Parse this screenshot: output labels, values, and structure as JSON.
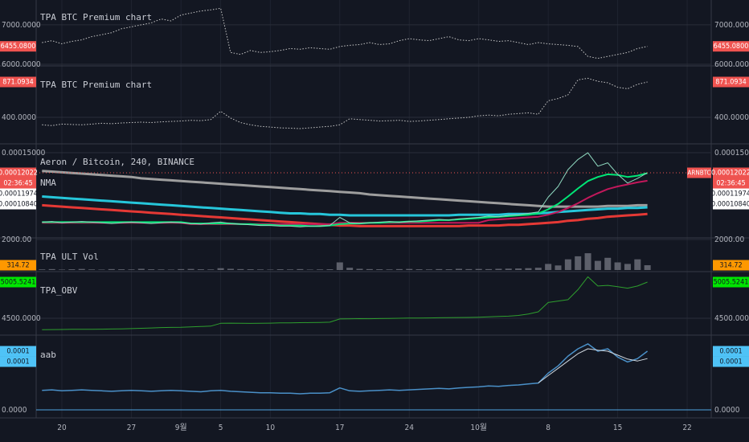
{
  "x_categories": [
    null,
    null,
    "20",
    null,
    null,
    null,
    null,
    null,
    null,
    "27",
    null,
    null,
    null,
    null,
    "9월",
    null,
    null,
    null,
    "5",
    null,
    null,
    null,
    null,
    "10",
    null,
    null,
    null,
    null,
    null,
    null,
    "17",
    null,
    null,
    null,
    null,
    null,
    null,
    "24",
    null,
    null,
    null,
    null,
    null,
    null,
    "10월",
    null,
    null,
    null,
    null,
    null,
    null,
    "8",
    null,
    null,
    null,
    null,
    null,
    null,
    "15",
    null,
    null,
    null,
    null,
    null,
    null,
    "22"
  ],
  "chart_data": [
    {
      "type": "line",
      "title": "TPA BTC Premium chart",
      "ylim": [
        6000,
        7630
      ],
      "yticks": [
        {
          "value": 6000,
          "label": "6000.0000"
        },
        {
          "value": 7000,
          "label": "7000.0000"
        }
      ],
      "series": [
        {
          "color": "#c8c8c8",
          "dashed": true,
          "label_color": "#ef5350",
          "last_label": "6455.0800",
          "values": [
            6550,
            6600,
            6520,
            6580,
            6620,
            6700,
            6750,
            6800,
            6900,
            6950,
            7000,
            7050,
            7150,
            7100,
            7250,
            7300,
            7350,
            7380,
            7420,
            6300,
            6250,
            6350,
            6300,
            6320,
            6350,
            6400,
            6380,
            6420,
            6400,
            6380,
            6450,
            6480,
            6500,
            6550,
            6500,
            6520,
            6600,
            6650,
            6620,
            6600,
            6650,
            6700,
            6620,
            6600,
            6650,
            6620,
            6580,
            6600,
            6550,
            6500,
            6550,
            6520,
            6500,
            6480,
            6450,
            6200,
            6150,
            6200,
            6250,
            6300,
            6400,
            6455.08,
            null,
            null,
            null,
            null
          ]
        }
      ]
    },
    {
      "type": "line",
      "title": "TPA BTC Premium chart",
      "ylim": [
        57,
        1064
      ],
      "yticks": [
        {
          "value": 400,
          "label": "400.0000"
        }
      ],
      "series": [
        {
          "color": "#c8c8c8",
          "dashed": true,
          "label_color": "#ef5350",
          "last_label": "871.0934",
          "values": [
            300,
            290,
            310,
            305,
            300,
            310,
            320,
            315,
            325,
            330,
            335,
            330,
            340,
            345,
            350,
            360,
            355,
            370,
            480,
            390,
            330,
            300,
            280,
            270,
            260,
            255,
            250,
            260,
            270,
            280,
            300,
            380,
            370,
            360,
            350,
            355,
            360,
            345,
            350,
            360,
            370,
            380,
            390,
            400,
            420,
            430,
            420,
            440,
            450,
            460,
            440,
            620,
            650,
            700,
            900,
            920,
            880,
            860,
            800,
            780,
            840,
            871.0934,
            null,
            null,
            null,
            null
          ]
        }
      ]
    },
    {
      "type": "line",
      "title": "Aeron / Bitcoin, 240, BINANCE",
      "subtitle": "NMA",
      "symbol": "ARNBTC",
      "countdown": "02:36:45",
      "ylim": [
        2.6e-05,
        0.000162
      ],
      "yticks": [
        {
          "value": 0.00015,
          "label": "0.00015000"
        }
      ],
      "series": [
        {
          "color": "#9e9e9e",
          "width": 3,
          "values": [
            0.000123,
            0.000122,
            0.000121,
            0.00012,
            0.000119,
            0.000118,
            0.000117,
            0.000116,
            0.000115,
            0.000114,
            0.000112,
            0.000111,
            0.00011,
            0.000109,
            0.000108,
            0.000107,
            0.000106,
            0.000105,
            0.000104,
            0.000103,
            0.000102,
            0.000101,
            0.0001,
            9.9e-05,
            9.8e-05,
            9.7e-05,
            9.6e-05,
            9.5e-05,
            9.4e-05,
            9.3e-05,
            9.2e-05,
            9.1e-05,
            9e-05,
            8.8e-05,
            8.7e-05,
            8.6e-05,
            8.5e-05,
            8.4e-05,
            8.3e-05,
            8.2e-05,
            8.1e-05,
            8e-05,
            7.9e-05,
            7.8e-05,
            7.7e-05,
            7.6e-05,
            7.5e-05,
            7.4e-05,
            7.3e-05,
            7.2e-05,
            7.1e-05,
            7e-05,
            7e-05,
            7e-05,
            7e-05,
            7e-05,
            7e-05,
            7.1e-05,
            7.1e-05,
            7.1e-05,
            7.2e-05,
            7.2e-05,
            null,
            null,
            null,
            null
          ]
        },
        {
          "color": "#26c6da",
          "width": 3,
          "values": [
            8.5e-05,
            8.4e-05,
            8.3e-05,
            8.2e-05,
            8.1e-05,
            8e-05,
            7.9e-05,
            7.8e-05,
            7.7e-05,
            7.6e-05,
            7.5e-05,
            7.4e-05,
            7.3e-05,
            7.2e-05,
            7.1e-05,
            7e-05,
            6.9e-05,
            6.8e-05,
            6.7e-05,
            6.6e-05,
            6.5e-05,
            6.4e-05,
            6.3e-05,
            6.2e-05,
            6.1e-05,
            6e-05,
            6e-05,
            5.9e-05,
            5.9e-05,
            5.8e-05,
            5.8e-05,
            5.7e-05,
            5.7e-05,
            5.7e-05,
            5.7e-05,
            5.7e-05,
            5.7e-05,
            5.7e-05,
            5.7e-05,
            5.7e-05,
            5.7e-05,
            5.7e-05,
            5.8e-05,
            5.8e-05,
            5.8e-05,
            5.8e-05,
            5.8e-05,
            5.9e-05,
            5.9e-05,
            5.9e-05,
            6e-05,
            6.1e-05,
            6.2e-05,
            6.3e-05,
            6.4e-05,
            6.5e-05,
            6.6e-05,
            6.7e-05,
            6.7e-05,
            6.8e-05,
            6.8e-05,
            6.9e-05,
            null,
            null,
            null,
            null
          ]
        },
        {
          "color": "#e53935",
          "width": 3,
          "values": [
            7.2e-05,
            7.1e-05,
            7e-05,
            6.9e-05,
            6.8e-05,
            6.7e-05,
            6.6e-05,
            6.5e-05,
            6.4e-05,
            6.3e-05,
            6.2e-05,
            6.1e-05,
            6e-05,
            5.9e-05,
            5.8e-05,
            5.7e-05,
            5.6e-05,
            5.5e-05,
            5.4e-05,
            5.3e-05,
            5.2e-05,
            5.1e-05,
            5e-05,
            4.9e-05,
            4.8e-05,
            4.7e-05,
            4.6e-05,
            4.5e-05,
            4.4e-05,
            4.3e-05,
            4.2e-05,
            4.2e-05,
            4.1e-05,
            4.1e-05,
            4.1e-05,
            4.1e-05,
            4.1e-05,
            4.1e-05,
            4.1e-05,
            4.1e-05,
            4.1e-05,
            4.1e-05,
            4.1e-05,
            4.2e-05,
            4.2e-05,
            4.2e-05,
            4.2e-05,
            4.3e-05,
            4.3e-05,
            4.4e-05,
            4.5e-05,
            4.6e-05,
            4.7e-05,
            4.9e-05,
            5e-05,
            5.2e-05,
            5.3e-05,
            5.5e-05,
            5.6e-05,
            5.7e-05,
            5.8e-05,
            5.9e-05,
            null,
            null,
            null,
            null
          ]
        },
        {
          "color": "#c2185b",
          "width": 2,
          "label_color": "#ffffff",
          "last_label": "0.00010840",
          "values": [
            4.6e-05,
            4.6e-05,
            4.6e-05,
            4.6e-05,
            4.6e-05,
            4.6e-05,
            4.6e-05,
            4.6e-05,
            4.6e-05,
            4.6e-05,
            4.6e-05,
            4.6e-05,
            4.6e-05,
            4.6e-05,
            4.6e-05,
            4.4e-05,
            4.4e-05,
            4.4e-05,
            4.4e-05,
            4.4e-05,
            4.4e-05,
            4.4e-05,
            4.4e-05,
            4.4e-05,
            4.4e-05,
            4.4e-05,
            4.4e-05,
            4.4e-05,
            4.4e-05,
            4.4e-05,
            4.6e-05,
            4.6e-05,
            4.6e-05,
            4.6e-05,
            4.6e-05,
            4.6e-05,
            4.6e-05,
            4.6e-05,
            4.6e-05,
            4.6e-05,
            4.6e-05,
            4.6e-05,
            4.6e-05,
            4.6e-05,
            4.6e-05,
            5e-05,
            5.1e-05,
            5.2e-05,
            5.3e-05,
            5.4e-05,
            5.5e-05,
            5.8e-05,
            6.2e-05,
            6.8e-05,
            7.5e-05,
            8.3e-05,
            9e-05,
            9.6e-05,
            0.0001,
            0.000103,
            0.000106,
            0.0001084,
            null,
            null,
            null,
            null
          ]
        },
        {
          "color": "#00e676",
          "width": 2,
          "label_color": "#ffffff",
          "last_label": "0.00011974",
          "values": [
            4.7e-05,
            4.7e-05,
            4.7e-05,
            4.7e-05,
            4.7e-05,
            4.7e-05,
            4.7e-05,
            4.7e-05,
            4.7e-05,
            4.7e-05,
            4.7e-05,
            4.7e-05,
            4.7e-05,
            4.7e-05,
            4.7e-05,
            4.5e-05,
            4.5e-05,
            4.5e-05,
            4.5e-05,
            4.5e-05,
            4.4e-05,
            4.4e-05,
            4.3e-05,
            4.3e-05,
            4.2e-05,
            4.2e-05,
            4.2e-05,
            4.1e-05,
            4.1e-05,
            4.2e-05,
            4.4e-05,
            4.5e-05,
            4.5e-05,
            4.6e-05,
            4.6e-05,
            4.7e-05,
            4.7e-05,
            4.8e-05,
            4.8e-05,
            4.9e-05,
            5e-05,
            5e-05,
            5.1e-05,
            5.2e-05,
            5.3e-05,
            5.4e-05,
            5.5e-05,
            5.6e-05,
            5.7e-05,
            5.8e-05,
            6e-05,
            6.6e-05,
            7.4e-05,
            8.5e-05,
            9.7e-05,
            0.000108,
            0.000114,
            0.000118,
            0.000117,
            0.000114,
            0.000116,
            0.00011974,
            null,
            null,
            null,
            null
          ]
        },
        {
          "color": "#8fd9c0",
          "width": 1,
          "label_color": "#ef5350",
          "last_label": "0.00012022",
          "price_line": true,
          "values": [
            4.7e-05,
            4.8e-05,
            4.6e-05,
            4.7e-05,
            4.8e-05,
            4.7e-05,
            4.6e-05,
            4.5e-05,
            4.6e-05,
            4.7e-05,
            4.6e-05,
            4.5e-05,
            4.6e-05,
            4.7e-05,
            4.6e-05,
            4.5e-05,
            4.4e-05,
            4.6e-05,
            4.7e-05,
            4.5e-05,
            4.4e-05,
            4.3e-05,
            4.2e-05,
            4.2e-05,
            4.1e-05,
            4.1e-05,
            4e-05,
            4.1e-05,
            4.1e-05,
            4.2e-05,
            5.4e-05,
            4.6e-05,
            4.5e-05,
            4.6e-05,
            4.7e-05,
            4.8e-05,
            4.7e-05,
            4.8e-05,
            4.9e-05,
            5e-05,
            5.1e-05,
            5e-05,
            5.2e-05,
            5.3e-05,
            5.4e-05,
            5.6e-05,
            5.5e-05,
            5.7e-05,
            5.8e-05,
            6e-05,
            6.2e-05,
            8.4e-05,
            0.0001,
            0.000125,
            0.00014,
            0.00015,
            0.00013,
            0.000135,
            0.000118,
            0.000105,
            0.000112,
            0.00012022,
            null,
            null,
            null,
            null
          ]
        }
      ]
    },
    {
      "type": "bar",
      "title": "TPA ULT Vol",
      "ylim": [
        0,
        2000
      ],
      "yticks": [
        {
          "value": 2000,
          "label": "2000.00"
        }
      ],
      "series": [
        {
          "color": "#5d606b",
          "label_color": "#ff9800",
          "last_label": "314.72",
          "values": [
            40,
            60,
            30,
            50,
            70,
            40,
            30,
            60,
            50,
            40,
            80,
            50,
            40,
            30,
            60,
            70,
            50,
            40,
            120,
            80,
            60,
            50,
            40,
            30,
            50,
            40,
            60,
            30,
            40,
            50,
            500,
            150,
            80,
            60,
            50,
            40,
            60,
            70,
            50,
            40,
            60,
            50,
            80,
            60,
            70,
            60,
            80,
            90,
            100,
            120,
            150,
            400,
            300,
            700,
            900,
            1100,
            600,
            800,
            500,
            400,
            700,
            314.72,
            null,
            null,
            null,
            null
          ]
        }
      ]
    },
    {
      "type": "line",
      "title": "TPA_OBV",
      "ylim": [
        4287,
        5129
      ],
      "yticks": [
        {
          "value": 4500,
          "label": "4500.0000"
        }
      ],
      "series": [
        {
          "color": "#2e9e2e",
          "label_color": "#00e600",
          "last_label": "5005.5241",
          "values": [
            4340,
            4342,
            4343,
            4345,
            4345,
            4347,
            4348,
            4350,
            4352,
            4355,
            4360,
            4365,
            4370,
            4372,
            4375,
            4380,
            4385,
            4390,
            4430,
            4432,
            4430,
            4428,
            4430,
            4432,
            4435,
            4436,
            4438,
            4440,
            4442,
            4445,
            4490,
            4492,
            4495,
            4494,
            4496,
            4498,
            4500,
            4502,
            4503,
            4505,
            4507,
            4508,
            4510,
            4512,
            4515,
            4520,
            4525,
            4530,
            4540,
            4560,
            4590,
            4720,
            4740,
            4760,
            4900,
            5080,
            4950,
            4960,
            4940,
            4920,
            4950,
            5005.5241,
            null,
            null,
            null,
            null
          ]
        }
      ]
    },
    {
      "type": "line",
      "title": "aab",
      "ylim": [
        -1.64e-05,
        0.000148
      ],
      "yticks": [
        {
          "value": 0,
          "label": "0.0000"
        }
      ],
      "series": [
        {
          "color": "#4a90c8",
          "width": 1.5,
          "label_color": "#4fc3f7",
          "last_label": "0.0001",
          "values": [
            4e-05,
            4.1e-05,
            3.9e-05,
            4e-05,
            4.1e-05,
            4e-05,
            3.9e-05,
            3.8e-05,
            3.9e-05,
            4e-05,
            3.9e-05,
            3.8e-05,
            3.9e-05,
            4e-05,
            3.9e-05,
            3.8e-05,
            3.7e-05,
            3.9e-05,
            4e-05,
            3.8e-05,
            3.7e-05,
            3.6e-05,
            3.5e-05,
            3.5e-05,
            3.4e-05,
            3.4e-05,
            3.3e-05,
            3.4e-05,
            3.4e-05,
            3.5e-05,
            4.5e-05,
            3.9e-05,
            3.8e-05,
            3.9e-05,
            4e-05,
            4.1e-05,
            4e-05,
            4.1e-05,
            4.2e-05,
            4.3e-05,
            4.4e-05,
            4.3e-05,
            4.5e-05,
            4.6e-05,
            4.7e-05,
            4.9e-05,
            4.8e-05,
            5e-05,
            5.1e-05,
            5.3e-05,
            5.5e-05,
            7.5e-05,
            9e-05,
            0.00011,
            0.000125,
            0.000135,
            0.00012,
            0.000125,
            0.000108,
            9.8e-05,
            0.000105,
            0.00012,
            null,
            null,
            null,
            null
          ]
        },
        {
          "color": "#d0d8e0",
          "width": 1,
          "label_color": "#4fc3f7",
          "last_label": "0.0001",
          "values": [
            null,
            null,
            null,
            null,
            null,
            null,
            null,
            null,
            null,
            null,
            null,
            null,
            null,
            null,
            null,
            null,
            null,
            null,
            null,
            null,
            null,
            null,
            null,
            null,
            null,
            null,
            null,
            null,
            null,
            null,
            null,
            null,
            null,
            null,
            null,
            null,
            null,
            null,
            null,
            null,
            null,
            null,
            null,
            null,
            null,
            null,
            null,
            null,
            null,
            null,
            5.5e-05,
            7e-05,
            8.5e-05,
            0.0001,
            0.000115,
            0.000125,
            0.000122,
            0.00012,
            0.000112,
            0.000104,
            0.0001,
            0.000105,
            null,
            null,
            null,
            null
          ]
        }
      ]
    }
  ]
}
